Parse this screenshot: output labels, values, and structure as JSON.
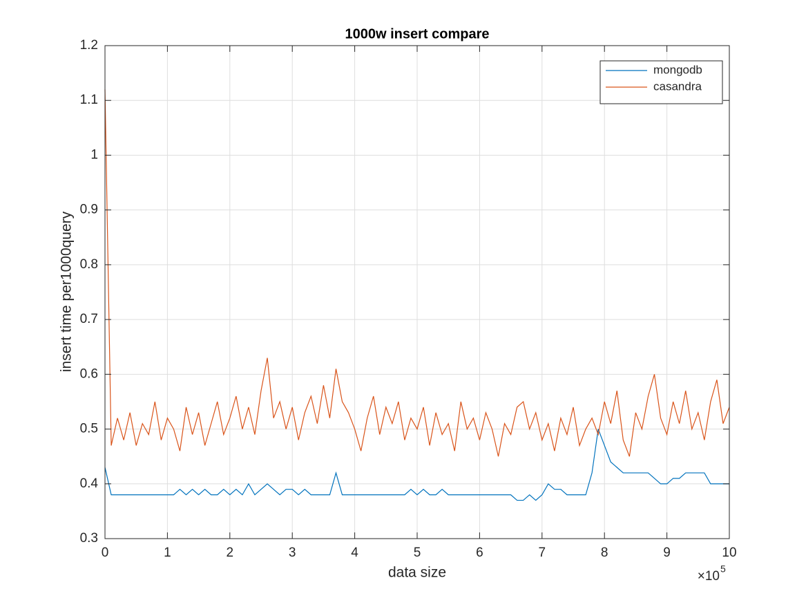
{
  "chart_data": {
    "type": "line",
    "title": "1000w insert compare",
    "x_label": "data size",
    "y_label": "insert time per1000query",
    "x_multiplier_base": "×10",
    "x_multiplier_power": "5",
    "x": [
      0,
      10000,
      20000,
      30000,
      40000,
      50000,
      60000,
      70000,
      80000,
      90000,
      100000,
      110000,
      120000,
      130000,
      140000,
      150000,
      160000,
      170000,
      180000,
      190000,
      200000,
      210000,
      220000,
      230000,
      240000,
      250000,
      260000,
      270000,
      280000,
      290000,
      300000,
      310000,
      320000,
      330000,
      340000,
      350000,
      360000,
      370000,
      380000,
      390000,
      400000,
      410000,
      420000,
      430000,
      440000,
      450000,
      460000,
      470000,
      480000,
      490000,
      500000,
      510000,
      520000,
      530000,
      540000,
      550000,
      560000,
      570000,
      580000,
      590000,
      600000,
      610000,
      620000,
      630000,
      640000,
      650000,
      660000,
      670000,
      680000,
      690000,
      700000,
      710000,
      720000,
      730000,
      740000,
      750000,
      760000,
      770000,
      780000,
      790000,
      800000,
      810000,
      820000,
      830000,
      840000,
      850000,
      860000,
      870000,
      880000,
      890000,
      900000,
      910000,
      920000,
      930000,
      940000,
      950000,
      960000,
      970000,
      980000,
      990000,
      1000000
    ],
    "series": [
      {
        "name": "mongodb",
        "color": "#0072bd",
        "values": [
          0.43,
          0.38,
          0.38,
          0.38,
          0.38,
          0.38,
          0.38,
          0.38,
          0.38,
          0.38,
          0.38,
          0.38,
          0.39,
          0.38,
          0.39,
          0.38,
          0.39,
          0.38,
          0.38,
          0.39,
          0.38,
          0.39,
          0.38,
          0.4,
          0.38,
          0.39,
          0.4,
          0.39,
          0.38,
          0.39,
          0.39,
          0.38,
          0.39,
          0.38,
          0.38,
          0.38,
          0.38,
          0.42,
          0.38,
          0.38,
          0.38,
          0.38,
          0.38,
          0.38,
          0.38,
          0.38,
          0.38,
          0.38,
          0.38,
          0.39,
          0.38,
          0.39,
          0.38,
          0.38,
          0.39,
          0.38,
          0.38,
          0.38,
          0.38,
          0.38,
          0.38,
          0.38,
          0.38,
          0.38,
          0.38,
          0.38,
          0.37,
          0.37,
          0.38,
          0.37,
          0.38,
          0.4,
          0.39,
          0.39,
          0.38,
          0.38,
          0.38,
          0.38,
          0.42,
          0.5,
          0.47,
          0.44,
          0.43,
          0.42,
          0.42,
          0.42,
          0.42,
          0.42,
          0.41,
          0.4,
          0.4,
          0.41,
          0.41,
          0.42,
          0.42,
          0.42,
          0.42,
          0.4,
          0.4,
          0.4,
          0.4
        ]
      },
      {
        "name": "casandra",
        "color": "#d95319",
        "values": [
          1.12,
          0.47,
          0.52,
          0.48,
          0.53,
          0.47,
          0.51,
          0.49,
          0.55,
          0.48,
          0.52,
          0.5,
          0.46,
          0.54,
          0.49,
          0.53,
          0.47,
          0.51,
          0.55,
          0.49,
          0.52,
          0.56,
          0.5,
          0.54,
          0.49,
          0.57,
          0.63,
          0.52,
          0.55,
          0.5,
          0.54,
          0.48,
          0.53,
          0.56,
          0.51,
          0.58,
          0.52,
          0.61,
          0.55,
          0.53,
          0.5,
          0.46,
          0.52,
          0.56,
          0.49,
          0.54,
          0.51,
          0.55,
          0.48,
          0.52,
          0.5,
          0.54,
          0.47,
          0.53,
          0.49,
          0.51,
          0.46,
          0.55,
          0.5,
          0.52,
          0.48,
          0.53,
          0.5,
          0.45,
          0.51,
          0.49,
          0.54,
          0.55,
          0.5,
          0.53,
          0.48,
          0.51,
          0.46,
          0.52,
          0.49,
          0.54,
          0.47,
          0.5,
          0.52,
          0.49,
          0.55,
          0.51,
          0.57,
          0.48,
          0.45,
          0.53,
          0.5,
          0.56,
          0.6,
          0.52,
          0.49,
          0.55,
          0.51,
          0.57,
          0.5,
          0.53,
          0.48,
          0.55,
          0.59,
          0.51,
          0.54
        ]
      }
    ],
    "xlim": [
      0,
      1000000
    ],
    "xticks": [
      {
        "value": 0,
        "label": "0"
      },
      {
        "value": 100000,
        "label": "1"
      },
      {
        "value": 200000,
        "label": "2"
      },
      {
        "value": 300000,
        "label": "3"
      },
      {
        "value": 400000,
        "label": "4"
      },
      {
        "value": 500000,
        "label": "5"
      },
      {
        "value": 600000,
        "label": "6"
      },
      {
        "value": 700000,
        "label": "7"
      },
      {
        "value": 800000,
        "label": "8"
      },
      {
        "value": 900000,
        "label": "9"
      },
      {
        "value": 1000000,
        "label": "10"
      }
    ],
    "ylim": [
      0.3,
      1.2
    ],
    "yticks": [
      0.3,
      0.4,
      0.5,
      0.6,
      0.7,
      0.8,
      0.9,
      1,
      1.1,
      1.2
    ],
    "grid": true,
    "legend": "upper right"
  }
}
